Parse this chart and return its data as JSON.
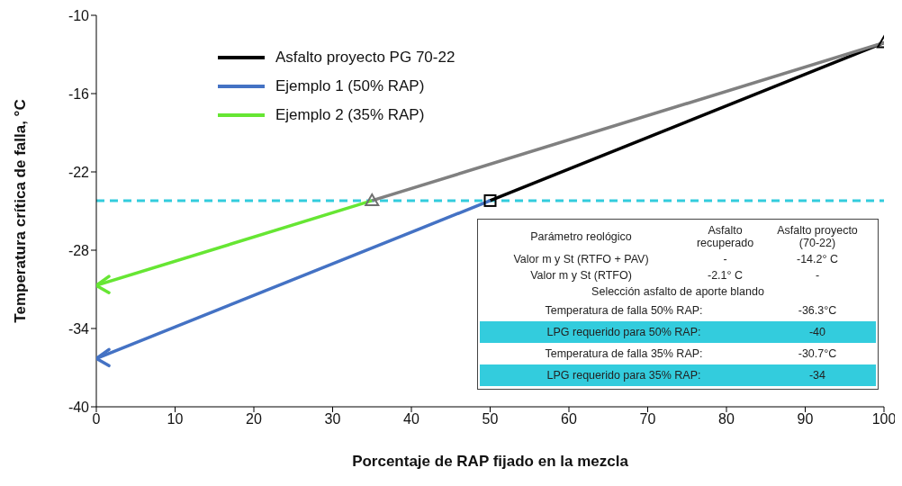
{
  "chart_data": {
    "type": "line",
    "xlabel": "Porcentaje de RAP fijado en la mezcla",
    "ylabel": "Temperatura crítica de falla, °C",
    "xlim": [
      0,
      100
    ],
    "xticks": [
      0,
      10,
      20,
      30,
      40,
      50,
      60,
      70,
      80,
      90,
      100
    ],
    "ylim": [
      -40,
      -10
    ],
    "yticks": [
      -40,
      -34,
      -28,
      -22,
      -16,
      -10
    ],
    "grid": false,
    "legend": "top left",
    "marker": "none",
    "line_style": "solid",
    "series": [
      {
        "name": "Asfalto proyecto PG 70-22",
        "color": "#000000",
        "x": [
          50,
          100
        ],
        "values": [
          -24.2,
          -12.1
        ]
      },
      {
        "name": "Ejemplo 1 (50% RAP)",
        "color": "#4472c4",
        "x": [
          0,
          50
        ],
        "values": [
          -36.3,
          -24.2
        ]
      },
      {
        "name": "Ejemplo 2 (35% RAP)",
        "color": "#66e633",
        "x": [
          0,
          35
        ],
        "values": [
          -30.7,
          -24.2
        ]
      },
      {
        "color": "#808080",
        "x": [
          35,
          100
        ],
        "values": [
          -24.2,
          -12.1
        ]
      },
      {
        "type": "scatter",
        "marker": "triangle",
        "color": "#707070",
        "x": [
          35
        ],
        "values": [
          -24.2
        ]
      },
      {
        "type": "scatter",
        "marker": "square",
        "color": "#000000",
        "x": [
          50
        ],
        "values": [
          -24.2
        ]
      },
      {
        "type": "scatter",
        "marker": "triangle",
        "color": "#000000",
        "x": [
          100
        ],
        "values": [
          -12.1
        ]
      }
    ],
    "ref_lines": [
      {
        "axis": "y",
        "value": -24.2,
        "color": "#33ccdd",
        "line_style": "dashed"
      }
    ],
    "annotations": [
      "Parámetro reológico",
      "Asfalto recuperado",
      "Asfalto proyecto (70-22)",
      "Valor m y St (RTFO + PAV)",
      "-",
      "-14.2° C",
      "Valor m y St (RTFO)",
      "-2.1° C",
      "-",
      "Selección asfalto de aporte blando",
      "Temperatura de falla 50% RAP:",
      "-36.3°C",
      "LPG requerido para 50% RAP:",
      "-40",
      "Temperatura de falla 35% RAP:",
      "-30.7°C",
      "LPG requerido para 35% RAP:",
      "-34"
    ]
  }
}
